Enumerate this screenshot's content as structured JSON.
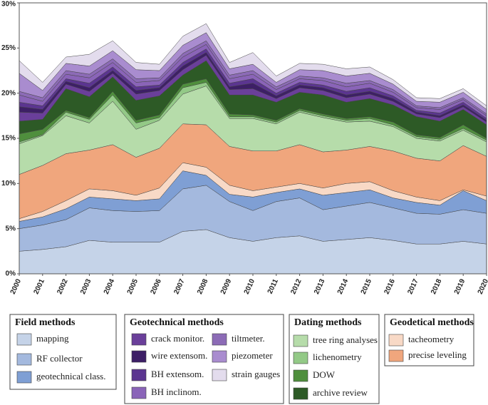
{
  "chart_data": {
    "type": "stacked-area",
    "x": [
      2000,
      2001,
      2002,
      2003,
      2004,
      2005,
      2006,
      2007,
      2008,
      2009,
      2010,
      2011,
      2012,
      2013,
      2014,
      2015,
      2016,
      2017,
      2018,
      2019,
      2020
    ],
    "xlim": [
      2000,
      2020
    ],
    "xticks": [
      2000,
      2001,
      2002,
      2003,
      2004,
      2005,
      2006,
      2007,
      2008,
      2009,
      2010,
      2011,
      2012,
      2013,
      2014,
      2015,
      2016,
      2017,
      2018,
      2019,
      2020
    ],
    "ylim": [
      0,
      30
    ],
    "yticks": [
      {
        "value": 0,
        "label": "0%"
      },
      {
        "value": 5,
        "label": "5%"
      },
      {
        "value": 10,
        "label": "10%"
      },
      {
        "value": 15,
        "label": "15%"
      },
      {
        "value": 20,
        "label": "20%"
      },
      {
        "value": 25,
        "label": "25%"
      },
      {
        "value": 30,
        "label": "30%"
      }
    ],
    "legend_groups": [
      {
        "title": "Field methods",
        "series_count": 3
      },
      {
        "title": "Geotechnical methods",
        "series_count": 7
      },
      {
        "title": "Dating methods",
        "series_count": 4
      },
      {
        "title": "Geodetical methods",
        "series_count": 2
      }
    ],
    "series": [
      {
        "name": "mapping",
        "color": "#c5d3e8",
        "values": [
          2.5,
          2.7,
          3.0,
          3.7,
          3.5,
          3.5,
          3.5,
          4.7,
          4.9,
          4.0,
          3.6,
          4.0,
          4.2,
          3.6,
          3.8,
          4.0,
          3.7,
          3.3,
          3.3,
          3.6,
          3.3
        ]
      },
      {
        "name": "RF collector",
        "color": "#a4b9de",
        "values": [
          2.5,
          2.7,
          3.0,
          3.6,
          3.5,
          3.4,
          3.5,
          4.7,
          4.9,
          4.0,
          3.4,
          4.0,
          4.2,
          3.5,
          3.7,
          3.9,
          3.6,
          3.4,
          3.3,
          3.5,
          3.4
        ]
      },
      {
        "name": "geotechnical class.",
        "color": "#7f9fd4",
        "values": [
          0.8,
          0.9,
          1.2,
          1.2,
          1.3,
          1.2,
          1.3,
          2.0,
          1.1,
          0.8,
          1.5,
          1.0,
          1.0,
          1.6,
          1.5,
          1.4,
          1.1,
          1.2,
          1.0,
          2.1,
          1.4
        ]
      },
      {
        "name": "crack monitor.",
        "color": "#6a3f9a",
        "values": [
          1.0,
          0.7,
          0.5,
          0.6,
          0.4,
          0.7,
          0.6,
          0.6,
          0.6,
          0.6,
          0.7,
          0.4,
          0.5,
          0.5,
          0.5,
          0.5,
          0.4,
          0.3,
          0.4,
          0.3,
          0.3
        ]
      },
      {
        "name": "wire extensom.",
        "color": "#3d1f66",
        "values": [
          0.6,
          0.4,
          0.3,
          0.4,
          0.3,
          0.4,
          0.3,
          0.4,
          0.3,
          0.3,
          0.6,
          0.3,
          0.3,
          0.3,
          0.3,
          0.3,
          0.3,
          0.2,
          0.2,
          0.2,
          0.2
        ]
      },
      {
        "name": "BH extensom.",
        "color": "#5b3590",
        "values": [
          0.5,
          0.4,
          0.3,
          0.5,
          0.4,
          0.4,
          0.3,
          0.4,
          0.4,
          0.4,
          0.5,
          0.3,
          0.3,
          0.3,
          0.4,
          0.4,
          0.3,
          0.2,
          0.3,
          0.3,
          0.2
        ]
      },
      {
        "name": "BH inclinom.",
        "color": "#8a64b8",
        "values": [
          0.8,
          0.5,
          0.5,
          0.6,
          0.5,
          0.5,
          0.5,
          0.6,
          0.5,
          0.5,
          0.5,
          0.4,
          0.4,
          0.5,
          0.5,
          0.5,
          0.4,
          0.3,
          0.4,
          0.3,
          0.3
        ]
      },
      {
        "name": "tiltmeter.",
        "color": "#8c6bb6",
        "values": [
          0.4,
          0.4,
          0.4,
          0.4,
          0.4,
          0.4,
          0.3,
          0.4,
          0.4,
          0.4,
          0.4,
          0.3,
          0.3,
          0.3,
          0.4,
          0.3,
          0.3,
          0.2,
          0.2,
          0.2,
          0.2
        ]
      },
      {
        "name": "piezometer",
        "color": "#a98ccf",
        "values": [
          2.0,
          0.8,
          0.8,
          0.9,
          0.9,
          1.0,
          0.8,
          0.9,
          0.9,
          0.7,
          0.7,
          0.5,
          0.7,
          0.8,
          0.8,
          0.8,
          0.6,
          0.5,
          0.6,
          0.6,
          0.5
        ]
      },
      {
        "name": "strain gauges",
        "color": "#e3dced",
        "values": [
          1.4,
          0.9,
          0.7,
          1.3,
          1.1,
          0.8,
          0.7,
          1.0,
          1.0,
          0.7,
          1.3,
          0.7,
          0.7,
          0.7,
          0.8,
          0.7,
          0.5,
          0.4,
          0.4,
          0.4,
          0.4
        ]
      },
      {
        "name": "tree ring analyses",
        "color": "#b6dcaa",
        "values": [
          3.4,
          3.3,
          4.2,
          3.0,
          4.8,
          3.1,
          3.1,
          3.3,
          4.3,
          3.1,
          3.6,
          3.0,
          3.6,
          3.8,
          3.1,
          2.8,
          2.7,
          2.2,
          2.2,
          1.7,
          1.6
        ]
      },
      {
        "name": "lichenometry",
        "color": "#93c987",
        "values": [
          0.2,
          0.1,
          0.4,
          0.4,
          0.7,
          0.7,
          0.3,
          0.7,
          0.4,
          0.2,
          0.2,
          0.2,
          0.2,
          0.2,
          0.2,
          0.3,
          0.2,
          0.2,
          0.2,
          0.2,
          0.2
        ]
      },
      {
        "name": "DOW",
        "color": "#4f8f3d",
        "values": [
          0.9,
          0.6,
          0.2,
          0.2,
          0.4,
          0.3,
          0.3,
          0.4,
          0.4,
          0.3,
          0.2,
          0.2,
          0.2,
          0.2,
          0.2,
          0.2,
          0.3,
          0.2,
          0.2,
          0.4,
          0.2
        ]
      },
      {
        "name": "archive review",
        "color": "#2d5a26",
        "values": [
          1.4,
          1.1,
          2.4,
          2.3,
          1.6,
          2.2,
          2.1,
          1.0,
          2.0,
          2.1,
          2.2,
          2.0,
          1.8,
          2.1,
          1.8,
          2.0,
          1.9,
          2.0,
          1.8,
          1.7,
          1.5
        ]
      },
      {
        "name": "tacheometry",
        "color": "#f8d9c6",
        "values": [
          0.3,
          0.6,
          0.9,
          0.9,
          0.9,
          0.6,
          1.2,
          0.9,
          0.9,
          1.0,
          0.7,
          0.6,
          0.6,
          0.8,
          1.0,
          0.9,
          0.8,
          0.6,
          0.5,
          0.1,
          0.5
        ]
      },
      {
        "name": "precise leveling",
        "color": "#f0a67d",
        "values": [
          4.9,
          5.1,
          5.2,
          4.3,
          5.1,
          4.2,
          4.4,
          4.3,
          4.7,
          4.3,
          4.4,
          4.0,
          4.3,
          4.0,
          3.7,
          3.9,
          4.4,
          4.3,
          4.4,
          4.9,
          4.4
        ]
      }
    ],
    "stack_order": [
      0,
      1,
      2,
      14,
      15,
      10,
      11,
      12,
      13,
      3,
      4,
      5,
      6,
      7,
      8,
      9
    ]
  }
}
